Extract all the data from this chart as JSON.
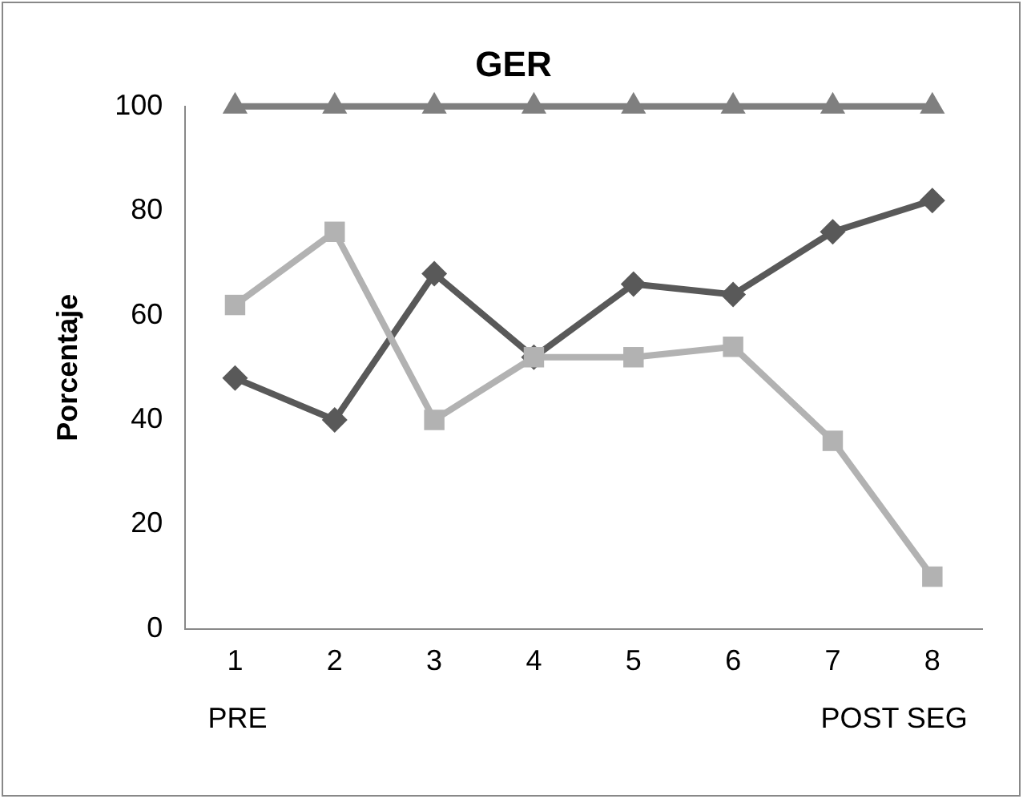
{
  "chart_data": {
    "type": "line",
    "title": "GER",
    "ylabel": "Porcentaje",
    "categories": [
      "1",
      "2",
      "3",
      "4",
      "5",
      "6",
      "7",
      "8"
    ],
    "series": [
      {
        "color": "#595959",
        "marker": "diamond",
        "values": [
          48,
          40,
          68,
          52,
          66,
          64,
          76,
          82
        ]
      },
      {
        "color": "#b2b2b2",
        "marker": "square",
        "values": [
          62,
          76,
          40,
          52,
          52,
          54,
          36,
          10
        ]
      },
      {
        "color": "#7f7f7f",
        "marker": "triangle",
        "values": [
          100,
          100,
          100,
          100,
          100,
          100,
          100,
          100
        ]
      }
    ],
    "ylim": [
      0,
      100
    ],
    "yticks": [
      0,
      20,
      40,
      60,
      80,
      100
    ],
    "grid": false,
    "legend": false,
    "annotations": [
      "PRE",
      "POST SEG"
    ]
  }
}
